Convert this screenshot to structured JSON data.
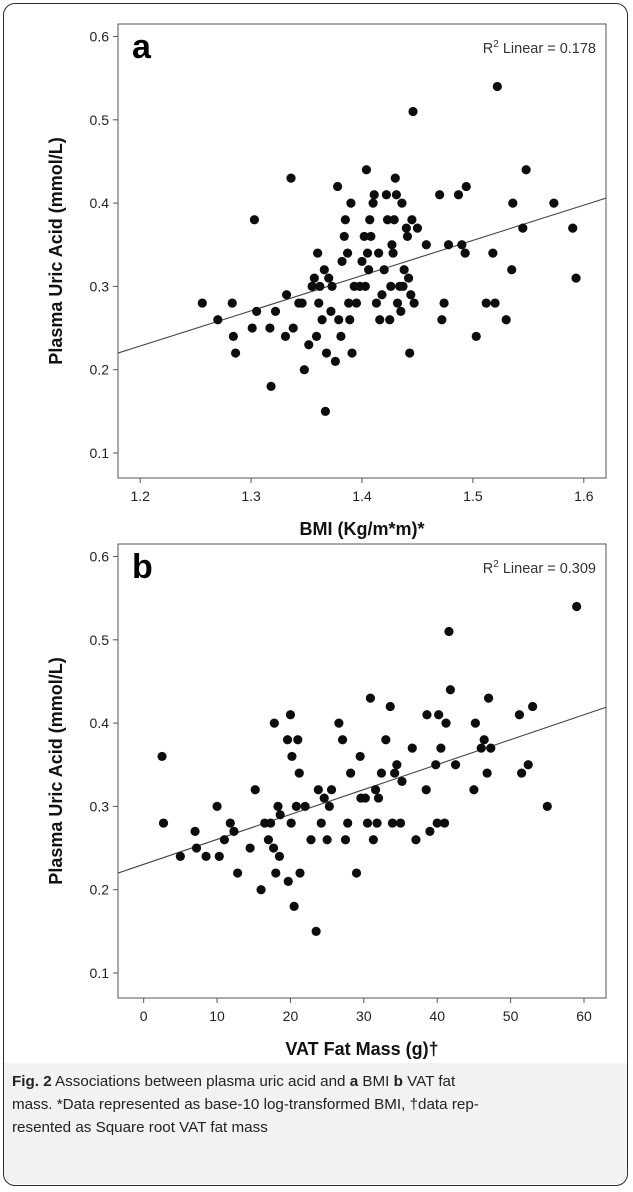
{
  "chart_data": [
    {
      "type": "scatter",
      "panel_label": "a",
      "xlabel": "BMI (Kg/m*m)*",
      "ylabel": "Plasma Uric Acid (mmol/L)",
      "xlim": [
        1.18,
        1.62
      ],
      "ylim": [
        0.07,
        0.615
      ],
      "xticks": [
        "1.2",
        "1.3",
        "1.4",
        "1.5",
        "1.6"
      ],
      "yticks": [
        "0.1",
        "0.2",
        "0.3",
        "0.4",
        "0.5",
        "0.6"
      ],
      "r2_prefix": "R",
      "r2_sup": "2",
      "r2_text": " Linear = 0.178",
      "fit_line": {
        "x": [
          1.18,
          1.62
        ],
        "y": [
          0.22,
          0.406
        ]
      },
      "points": [
        [
          1.256,
          0.28
        ],
        [
          1.27,
          0.26
        ],
        [
          1.283,
          0.28
        ],
        [
          1.284,
          0.24
        ],
        [
          1.286,
          0.22
        ],
        [
          1.301,
          0.25
        ],
        [
          1.303,
          0.38
        ],
        [
          1.305,
          0.27
        ],
        [
          1.317,
          0.25
        ],
        [
          1.318,
          0.18
        ],
        [
          1.322,
          0.27
        ],
        [
          1.331,
          0.24
        ],
        [
          1.332,
          0.29
        ],
        [
          1.336,
          0.43
        ],
        [
          1.338,
          0.25
        ],
        [
          1.343,
          0.28
        ],
        [
          1.346,
          0.28
        ],
        [
          1.348,
          0.2
        ],
        [
          1.352,
          0.23
        ],
        [
          1.355,
          0.3
        ],
        [
          1.357,
          0.31
        ],
        [
          1.359,
          0.24
        ],
        [
          1.36,
          0.34
        ],
        [
          1.361,
          0.28
        ],
        [
          1.362,
          0.3
        ],
        [
          1.364,
          0.26
        ],
        [
          1.366,
          0.32
        ],
        [
          1.367,
          0.15
        ],
        [
          1.368,
          0.22
        ],
        [
          1.37,
          0.31
        ],
        [
          1.372,
          0.27
        ],
        [
          1.373,
          0.3
        ],
        [
          1.376,
          0.21
        ],
        [
          1.378,
          0.42
        ],
        [
          1.379,
          0.26
        ],
        [
          1.381,
          0.24
        ],
        [
          1.382,
          0.33
        ],
        [
          1.384,
          0.36
        ],
        [
          1.385,
          0.38
        ],
        [
          1.387,
          0.34
        ],
        [
          1.388,
          0.28
        ],
        [
          1.389,
          0.26
        ],
        [
          1.39,
          0.4
        ],
        [
          1.391,
          0.22
        ],
        [
          1.393,
          0.3
        ],
        [
          1.395,
          0.28
        ],
        [
          1.398,
          0.3
        ],
        [
          1.4,
          0.33
        ],
        [
          1.402,
          0.36
        ],
        [
          1.403,
          0.3
        ],
        [
          1.404,
          0.44
        ],
        [
          1.405,
          0.34
        ],
        [
          1.406,
          0.32
        ],
        [
          1.407,
          0.38
        ],
        [
          1.408,
          0.36
        ],
        [
          1.41,
          0.4
        ],
        [
          1.411,
          0.41
        ],
        [
          1.413,
          0.28
        ],
        [
          1.415,
          0.34
        ],
        [
          1.416,
          0.26
        ],
        [
          1.418,
          0.29
        ],
        [
          1.42,
          0.32
        ],
        [
          1.422,
          0.41
        ],
        [
          1.423,
          0.38
        ],
        [
          1.425,
          0.26
        ],
        [
          1.426,
          0.3
        ],
        [
          1.427,
          0.35
        ],
        [
          1.428,
          0.34
        ],
        [
          1.429,
          0.38
        ],
        [
          1.43,
          0.43
        ],
        [
          1.431,
          0.41
        ],
        [
          1.432,
          0.28
        ],
        [
          1.434,
          0.3
        ],
        [
          1.435,
          0.27
        ],
        [
          1.436,
          0.4
        ],
        [
          1.437,
          0.3
        ],
        [
          1.438,
          0.32
        ],
        [
          1.44,
          0.37
        ],
        [
          1.441,
          0.36
        ],
        [
          1.442,
          0.31
        ],
        [
          1.443,
          0.22
        ],
        [
          1.444,
          0.29
        ],
        [
          1.445,
          0.38
        ],
        [
          1.446,
          0.51
        ],
        [
          1.447,
          0.28
        ],
        [
          1.45,
          0.37
        ],
        [
          1.458,
          0.35
        ],
        [
          1.47,
          0.41
        ],
        [
          1.472,
          0.26
        ],
        [
          1.474,
          0.28
        ],
        [
          1.478,
          0.35
        ],
        [
          1.487,
          0.41
        ],
        [
          1.49,
          0.35
        ],
        [
          1.494,
          0.42
        ],
        [
          1.493,
          0.34
        ],
        [
          1.503,
          0.24
        ],
        [
          1.512,
          0.28
        ],
        [
          1.518,
          0.34
        ],
        [
          1.52,
          0.28
        ],
        [
          1.522,
          0.54
        ],
        [
          1.53,
          0.26
        ],
        [
          1.535,
          0.32
        ],
        [
          1.536,
          0.4
        ],
        [
          1.545,
          0.37
        ],
        [
          1.548,
          0.44
        ],
        [
          1.573,
          0.4
        ],
        [
          1.59,
          0.37
        ],
        [
          1.593,
          0.31
        ]
      ]
    },
    {
      "type": "scatter",
      "panel_label": "b",
      "xlabel": "VAT Fat Mass (g)†",
      "ylabel": "Plasma Uric Acid (mmol/L)",
      "xlim": [
        -3.5,
        63
      ],
      "ylim": [
        0.07,
        0.615
      ],
      "xticks": [
        "0",
        "10",
        "20",
        "30",
        "40",
        "50",
        "60"
      ],
      "yticks": [
        "0.1",
        "0.2",
        "0.3",
        "0.4",
        "0.5",
        "0.6"
      ],
      "r2_prefix": "R",
      "r2_sup": "2",
      "r2_text": " Linear = 0.309",
      "fit_line": {
        "x": [
          -3.5,
          63
        ],
        "y": [
          0.22,
          0.419
        ]
      },
      "points": [
        [
          2.5,
          0.36
        ],
        [
          2.7,
          0.28
        ],
        [
          5,
          0.24
        ],
        [
          7,
          0.27
        ],
        [
          7.2,
          0.25
        ],
        [
          8.5,
          0.24
        ],
        [
          10,
          0.3
        ],
        [
          10.3,
          0.24
        ],
        [
          11,
          0.26
        ],
        [
          11.8,
          0.28
        ],
        [
          12.3,
          0.27
        ],
        [
          12.8,
          0.22
        ],
        [
          14.5,
          0.25
        ],
        [
          15.2,
          0.32
        ],
        [
          16,
          0.2
        ],
        [
          16.5,
          0.28
        ],
        [
          17,
          0.26
        ],
        [
          17.3,
          0.28
        ],
        [
          17.8,
          0.4
        ],
        [
          17.7,
          0.25
        ],
        [
          18,
          0.22
        ],
        [
          18.3,
          0.3
        ],
        [
          18.6,
          0.29
        ],
        [
          18.5,
          0.24
        ],
        [
          19.6,
          0.38
        ],
        [
          19.7,
          0.21
        ],
        [
          20,
          0.41
        ],
        [
          20.1,
          0.28
        ],
        [
          20.2,
          0.36
        ],
        [
          20.5,
          0.18
        ],
        [
          20.8,
          0.3
        ],
        [
          21,
          0.38
        ],
        [
          21.3,
          0.22
        ],
        [
          21.2,
          0.34
        ],
        [
          22,
          0.3
        ],
        [
          22.8,
          0.26
        ],
        [
          23.5,
          0.15
        ],
        [
          23.8,
          0.32
        ],
        [
          24.2,
          0.28
        ],
        [
          24.6,
          0.31
        ],
        [
          25,
          0.26
        ],
        [
          25.3,
          0.3
        ],
        [
          25.6,
          0.32
        ],
        [
          26.6,
          0.4
        ],
        [
          27.1,
          0.38
        ],
        [
          27.5,
          0.26
        ],
        [
          27.8,
          0.28
        ],
        [
          28.2,
          0.34
        ],
        [
          29,
          0.22
        ],
        [
          29.5,
          0.36
        ],
        [
          29.6,
          0.31
        ],
        [
          30.2,
          0.31
        ],
        [
          30.5,
          0.28
        ],
        [
          30.9,
          0.43
        ],
        [
          31.3,
          0.26
        ],
        [
          31.6,
          0.32
        ],
        [
          31.8,
          0.28
        ],
        [
          32,
          0.31
        ],
        [
          32.4,
          0.34
        ],
        [
          33,
          0.38
        ],
        [
          33.6,
          0.42
        ],
        [
          33.9,
          0.28
        ],
        [
          34.2,
          0.34
        ],
        [
          34.5,
          0.35
        ],
        [
          35,
          0.28
        ],
        [
          35.2,
          0.33
        ],
        [
          36.6,
          0.37
        ],
        [
          37.1,
          0.26
        ],
        [
          38.5,
          0.32
        ],
        [
          38.6,
          0.41
        ],
        [
          39,
          0.27
        ],
        [
          39.8,
          0.35
        ],
        [
          40,
          0.28
        ],
        [
          40.2,
          0.41
        ],
        [
          40.5,
          0.37
        ],
        [
          41,
          0.28
        ],
        [
          41.2,
          0.4
        ],
        [
          41.6,
          0.51
        ],
        [
          41.8,
          0.44
        ],
        [
          42.5,
          0.35
        ],
        [
          45,
          0.32
        ],
        [
          45.2,
          0.4
        ],
        [
          46,
          0.37
        ],
        [
          46.4,
          0.38
        ],
        [
          46.8,
          0.34
        ],
        [
          47,
          0.43
        ],
        [
          47.3,
          0.37
        ],
        [
          51.2,
          0.41
        ],
        [
          51.5,
          0.34
        ],
        [
          52.4,
          0.35
        ],
        [
          53,
          0.42
        ],
        [
          55,
          0.3
        ],
        [
          59,
          0.54
        ]
      ]
    }
  ],
  "caption": {
    "fig_label": "Fig. 2",
    "part1": " Associations between plasma uric acid and ",
    "a": "a",
    "part2": " BMI ",
    "b": "b",
    "part3": " VAT fat",
    "line2_pre": "mass. *Data represented as base-10 log-transformed BMI, †data rep-",
    "line3": "resented as Square root VAT fat mass"
  }
}
